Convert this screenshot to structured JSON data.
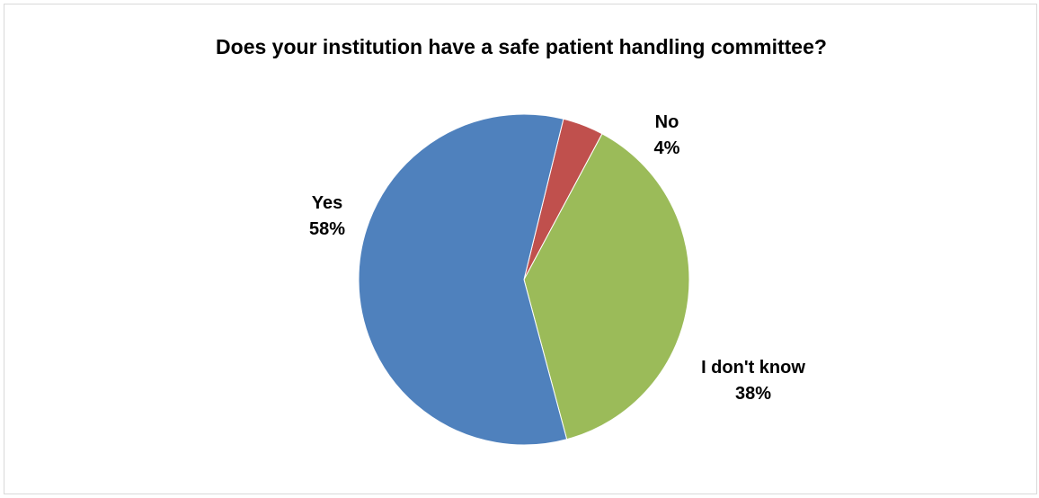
{
  "chart_data": {
    "type": "pie",
    "title": "Does your institution have a safe patient handling committee?",
    "slices": [
      {
        "label": "Yes",
        "value": 58,
        "value_label": "58%",
        "color": "#4F81BD"
      },
      {
        "label": "No",
        "value": 4,
        "value_label": "4%",
        "color": "#C0504D"
      },
      {
        "label": "I don't know",
        "value": 38,
        "value_label": "38%",
        "color": "#9BBB59"
      }
    ],
    "legend": "none"
  }
}
